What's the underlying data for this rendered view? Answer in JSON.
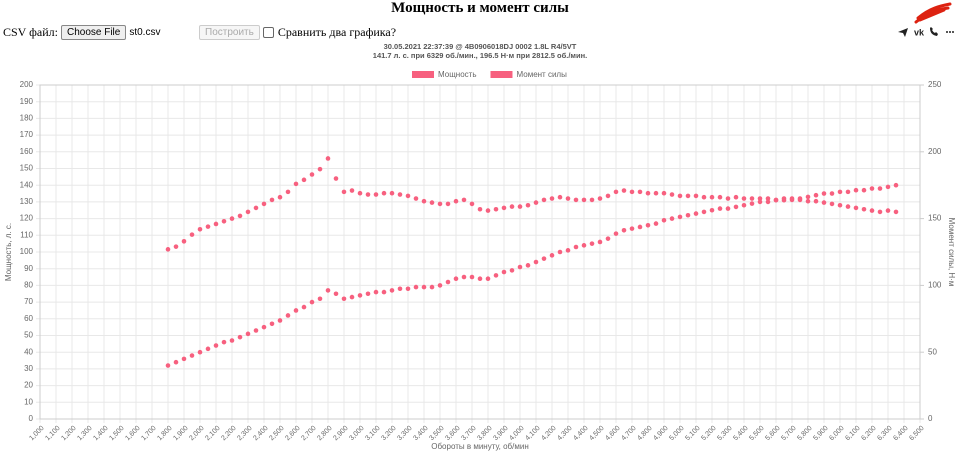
{
  "header": {
    "title": "Мощность и момент силы",
    "file_label": "CSV файл:",
    "file_button": "Choose File",
    "file_name": "st0.csv",
    "build_button": "Построить",
    "compare_label": "Сравнить два графика?"
  },
  "chart_data": {
    "type": "scatter",
    "subtitle": [
      "30.05.2021 22:37:39 @ 4B0906018DJ 0002 1.8L R4/5VT",
      "141.7 л. с. при 6329 об./мин., 196.5 Н·м при 2812.5 об./мин."
    ],
    "xlabel": "Обороты в минуту, об/мин",
    "ylabel": "Мощность, л. с.",
    "y2label": "Момент силы, Н·м",
    "legend": "top",
    "grid": true,
    "x": [
      1800,
      1850,
      1900,
      1950,
      2000,
      2050,
      2100,
      2150,
      2200,
      2250,
      2300,
      2350,
      2400,
      2450,
      2500,
      2550,
      2600,
      2650,
      2700,
      2750,
      2800,
      2850,
      2900,
      2950,
      3000,
      3050,
      3100,
      3150,
      3200,
      3250,
      3300,
      3350,
      3400,
      3450,
      3500,
      3550,
      3600,
      3650,
      3700,
      3750,
      3800,
      3850,
      3900,
      3950,
      4000,
      4050,
      4100,
      4150,
      4200,
      4250,
      4300,
      4350,
      4400,
      4450,
      4500,
      4550,
      4600,
      4650,
      4700,
      4750,
      4800,
      4850,
      4900,
      4950,
      5000,
      5050,
      5100,
      5150,
      5200,
      5250,
      5300,
      5350,
      5400,
      5450,
      5500,
      5550,
      5600,
      5650,
      5700,
      5750,
      5800,
      5850,
      5900,
      5950,
      6000,
      6050,
      6100,
      6150,
      6200,
      6250,
      6300,
      6350
    ],
    "series": [
      {
        "name": "Мощность",
        "color": "#f7607f",
        "axis": "y",
        "values": [
          32,
          34,
          36,
          38,
          40,
          42,
          44,
          46,
          47,
          49,
          51,
          53,
          55,
          57,
          59,
          62,
          65,
          67,
          70,
          72,
          77,
          75,
          72,
          73,
          74,
          75,
          76,
          76,
          77,
          78,
          78,
          79,
          79,
          79,
          80,
          82,
          84,
          85,
          85,
          84,
          84,
          86,
          88,
          89,
          91,
          92,
          94,
          96,
          98,
          100,
          101,
          103,
          104,
          105,
          106,
          108,
          111,
          113,
          114,
          115,
          116,
          117,
          119,
          120,
          121,
          122,
          123,
          124,
          125,
          126,
          126,
          127,
          128,
          129,
          130,
          130,
          131,
          131,
          132,
          132,
          133,
          134,
          135,
          135,
          136,
          136,
          137,
          137,
          138,
          138,
          139,
          140
        ]
      },
      {
        "name": "Момент силы",
        "color": "#f7607f",
        "axis": "y2",
        "values": [
          127,
          129,
          133,
          138,
          142,
          144,
          146,
          148,
          150,
          152,
          155,
          158,
          161,
          164,
          166,
          170,
          176,
          179,
          183,
          187,
          195,
          180,
          170,
          171,
          169,
          168,
          168,
          169,
          169,
          168,
          167,
          165,
          163,
          162,
          161,
          161,
          163,
          164,
          161,
          157,
          156,
          157,
          158,
          159,
          159,
          160,
          162,
          164,
          165,
          166,
          165,
          164,
          164,
          164,
          165,
          167,
          170,
          171,
          170,
          170,
          169,
          169,
          169,
          168,
          167,
          167,
          167,
          166,
          166,
          166,
          165,
          166,
          165,
          165,
          165,
          165,
          164,
          165,
          164,
          164,
          163,
          163,
          162,
          161,
          160,
          159,
          158,
          157,
          156,
          155,
          156,
          155
        ]
      }
    ],
    "xlim": [
      1000,
      6500
    ],
    "xticks": [
      {
        "value": 1000,
        "label": "1,000"
      },
      {
        "value": 1100,
        "label": "1,100"
      },
      {
        "value": 1200,
        "label": "1,200"
      },
      {
        "value": 1300,
        "label": "1,300"
      },
      {
        "value": 1400,
        "label": "1,400"
      },
      {
        "value": 1500,
        "label": "1,500"
      },
      {
        "value": 1600,
        "label": "1,600"
      },
      {
        "value": 1700,
        "label": "1,700"
      },
      {
        "value": 1800,
        "label": "1,800"
      },
      {
        "value": 1900,
        "label": "1,900"
      },
      {
        "value": 2000,
        "label": "2,000"
      },
      {
        "value": 2100,
        "label": "2,100"
      },
      {
        "value": 2200,
        "label": "2,200"
      },
      {
        "value": 2300,
        "label": "2,300"
      },
      {
        "value": 2400,
        "label": "2,400"
      },
      {
        "value": 2500,
        "label": "2,500"
      },
      {
        "value": 2600,
        "label": "2,600"
      },
      {
        "value": 2700,
        "label": "2,700"
      },
      {
        "value": 2800,
        "label": "2,800"
      },
      {
        "value": 2900,
        "label": "2,900"
      },
      {
        "value": 3000,
        "label": "3,000"
      },
      {
        "value": 3100,
        "label": "3,100"
      },
      {
        "value": 3200,
        "label": "3,200"
      },
      {
        "value": 3300,
        "label": "3,300"
      },
      {
        "value": 3400,
        "label": "3,400"
      },
      {
        "value": 3500,
        "label": "3,500"
      },
      {
        "value": 3600,
        "label": "3,600"
      },
      {
        "value": 3700,
        "label": "3,700"
      },
      {
        "value": 3800,
        "label": "3,800"
      },
      {
        "value": 3900,
        "label": "3,900"
      },
      {
        "value": 4000,
        "label": "4,000"
      },
      {
        "value": 4100,
        "label": "4,100"
      },
      {
        "value": 4200,
        "label": "4,200"
      },
      {
        "value": 4300,
        "label": "4,300"
      },
      {
        "value": 4400,
        "label": "4,400"
      },
      {
        "value": 4500,
        "label": "4,500"
      },
      {
        "value": 4600,
        "label": "4,600"
      },
      {
        "value": 4700,
        "label": "4,700"
      },
      {
        "value": 4800,
        "label": "4,800"
      },
      {
        "value": 4900,
        "label": "4,900"
      },
      {
        "value": 5000,
        "label": "5,000"
      },
      {
        "value": 5100,
        "label": "5,100"
      },
      {
        "value": 5200,
        "label": "5,200"
      },
      {
        "value": 5300,
        "label": "5,300"
      },
      {
        "value": 5400,
        "label": "5,400"
      },
      {
        "value": 5500,
        "label": "5,500"
      },
      {
        "value": 5600,
        "label": "5,600"
      },
      {
        "value": 5700,
        "label": "5,700"
      },
      {
        "value": 5800,
        "label": "5,800"
      },
      {
        "value": 5900,
        "label": "5,900"
      },
      {
        "value": 6000,
        "label": "6,000"
      },
      {
        "value": 6100,
        "label": "6,100"
      },
      {
        "value": 6200,
        "label": "6,200"
      },
      {
        "value": 6300,
        "label": "6,300"
      },
      {
        "value": 6400,
        "label": "6,400"
      },
      {
        "value": 6500,
        "label": "6,500"
      }
    ],
    "ylim": [
      0,
      200
    ],
    "yticks": [
      0,
      10,
      20,
      30,
      40,
      50,
      60,
      70,
      80,
      90,
      100,
      110,
      120,
      130,
      140,
      150,
      160,
      170,
      180,
      190,
      200
    ],
    "y2lim": [
      0,
      250
    ],
    "y2ticks": [
      0,
      50,
      100,
      150,
      200,
      250
    ]
  }
}
